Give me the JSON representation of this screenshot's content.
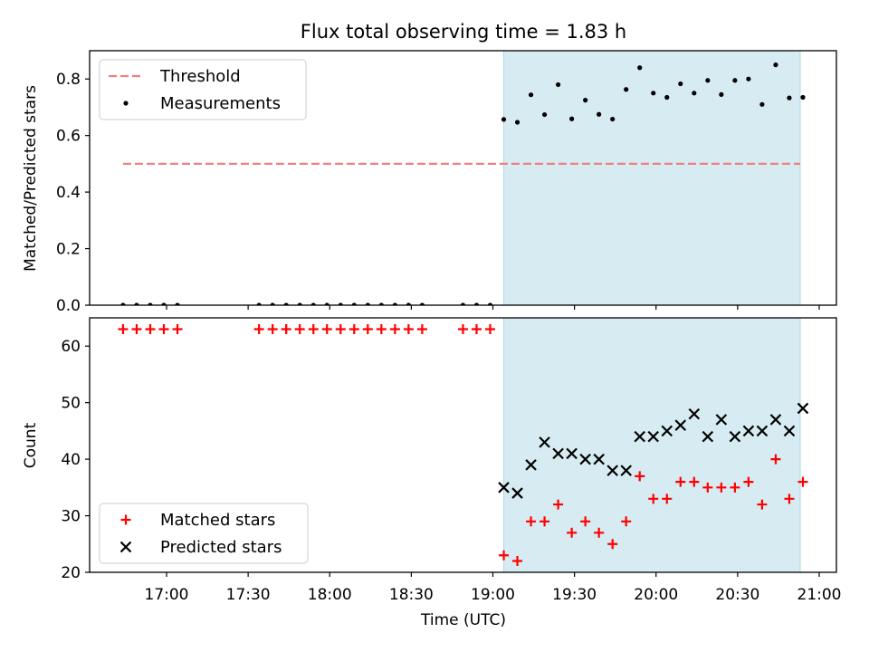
{
  "chart_data": {
    "type": "scatter",
    "title": "Flux total observing time = 1.83 h",
    "xlabel": "Time (UTC)",
    "x_ticks": [
      "17:00",
      "17:30",
      "18:00",
      "18:30",
      "19:00",
      "19:30",
      "20:00",
      "20:30",
      "21:00"
    ],
    "observing_window": {
      "start": "19:04",
      "end": "20:53",
      "color": "#add8e6"
    },
    "panels": [
      {
        "id": "ratio",
        "ylabel": "Matched/Predicted stars",
        "ylim": [
          0,
          0.9
        ],
        "y_ticks": [
          0.0,
          0.2,
          0.4,
          0.6,
          0.8
        ],
        "y_tick_labels": [
          "0.0",
          "0.2",
          "0.4",
          "0.6",
          "0.8"
        ],
        "legend": {
          "location": "upper-left",
          "entries": [
            "Threshold",
            "Measurements"
          ]
        },
        "series": [
          {
            "name": "Threshold",
            "style": "dashed-line",
            "color": "#f08080",
            "x_range": [
              "16:44",
              "20:53"
            ],
            "value": 0.5
          },
          {
            "name": "Measurements",
            "style": "dot",
            "color": "#000000",
            "x": [
              "16:44",
              "16:49",
              "16:54",
              "16:59",
              "17:04",
              "17:34",
              "17:39",
              "17:44",
              "17:49",
              "17:54",
              "17:59",
              "18:04",
              "18:09",
              "18:14",
              "18:19",
              "18:24",
              "18:29",
              "18:34",
              "18:49",
              "18:54",
              "18:59",
              "19:04",
              "19:09",
              "19:14",
              "19:19",
              "19:24",
              "19:29",
              "19:34",
              "19:39",
              "19:44",
              "19:49",
              "19:54",
              "19:59",
              "20:04",
              "20:09",
              "20:14",
              "20:19",
              "20:24",
              "20:29",
              "20:34",
              "20:39",
              "20:44",
              "20:49",
              "20:54"
            ],
            "values": [
              0,
              0,
              0,
              0,
              0,
              0,
              0,
              0,
              0,
              0,
              0,
              0,
              0,
              0,
              0,
              0,
              0,
              0,
              0,
              0,
              0,
              0.657,
              0.647,
              0.744,
              0.674,
              0.78,
              0.659,
              0.725,
              0.675,
              0.658,
              0.763,
              0.84,
              0.75,
              0.735,
              0.783,
              0.75,
              0.795,
              0.745,
              0.795,
              0.8,
              0.71,
              0.85,
              0.733,
              0.735
            ]
          }
        ]
      },
      {
        "id": "counts",
        "ylabel": "Count",
        "ylim": [
          20,
          65
        ],
        "y_ticks": [
          20,
          30,
          40,
          50,
          60
        ],
        "y_tick_labels": [
          "20",
          "30",
          "40",
          "50",
          "60"
        ],
        "legend": {
          "location": "lower-left",
          "entries": [
            "Matched stars",
            "Predicted stars"
          ]
        },
        "series": [
          {
            "name": "Matched stars",
            "marker": "+",
            "color": "#ff0000",
            "x": [
              "16:44",
              "16:49",
              "16:54",
              "16:59",
              "17:04",
              "17:34",
              "17:39",
              "17:44",
              "17:49",
              "17:54",
              "17:59",
              "18:04",
              "18:09",
              "18:14",
              "18:19",
              "18:24",
              "18:29",
              "18:34",
              "18:49",
              "18:54",
              "18:59",
              "19:04",
              "19:09",
              "19:14",
              "19:19",
              "19:24",
              "19:29",
              "19:34",
              "19:39",
              "19:44",
              "19:49",
              "19:54",
              "19:59",
              "20:04",
              "20:09",
              "20:14",
              "20:19",
              "20:24",
              "20:29",
              "20:34",
              "20:39",
              "20:44",
              "20:49",
              "20:54"
            ],
            "values": [
              63,
              63,
              63,
              63,
              63,
              63,
              63,
              63,
              63,
              63,
              63,
              63,
              63,
              63,
              63,
              63,
              63,
              63,
              63,
              63,
              63,
              23,
              22,
              29,
              29,
              32,
              27,
              29,
              27,
              25,
              29,
              37,
              33,
              33,
              36,
              36,
              35,
              35,
              35,
              36,
              32,
              40,
              33,
              36
            ]
          },
          {
            "name": "Predicted stars",
            "marker": "x",
            "color": "#000000",
            "x": [
              "19:04",
              "19:09",
              "19:14",
              "19:19",
              "19:24",
              "19:29",
              "19:34",
              "19:39",
              "19:44",
              "19:49",
              "19:54",
              "19:59",
              "20:04",
              "20:09",
              "20:14",
              "20:19",
              "20:24",
              "20:29",
              "20:34",
              "20:39",
              "20:44",
              "20:49",
              "20:54"
            ],
            "values": [
              35,
              34,
              39,
              43,
              41,
              41,
              40,
              40,
              38,
              38,
              44,
              44,
              45,
              46,
              48,
              44,
              47,
              44,
              45,
              45,
              47,
              45,
              49
            ]
          }
        ]
      }
    ]
  }
}
